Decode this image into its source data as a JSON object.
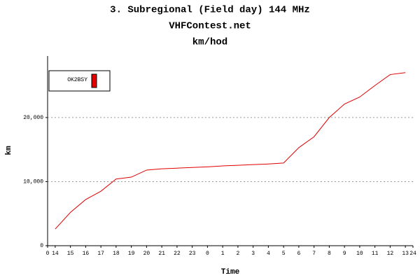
{
  "chart_data": {
    "type": "line",
    "title": "3. Subregional (Field day) 144 MHz",
    "subtitle": "VHFContest.net",
    "unit_title": "km/hod",
    "x_label": "Time",
    "y_label": "km",
    "x": [
      0.5,
      1.5,
      2.5,
      3.5,
      4.5,
      5.5,
      6.5,
      7.5,
      8.5,
      9.5,
      10.5,
      11.5,
      12.5,
      13.5,
      14.5,
      15.5,
      16.5,
      17.5,
      18.5,
      19.5,
      20.5,
      21.5,
      22.5,
      23.5
    ],
    "series": [
      {
        "name": "OK2BSY",
        "color": "#e00000",
        "values": [
          2600,
          5200,
          7200,
          8500,
          10400,
          10700,
          11800,
          12000,
          12100,
          12200,
          12300,
          12450,
          12550,
          12650,
          12750,
          12900,
          15300,
          17000,
          20000,
          22100,
          23200,
          25000,
          26700,
          27000
        ]
      }
    ],
    "xlim": [
      0,
      24
    ],
    "xticks": [
      0,
      {
        "value": 0.5,
        "label": "14"
      },
      {
        "value": 1.5,
        "label": "15"
      },
      {
        "value": 2.5,
        "label": "16"
      },
      {
        "value": 3.5,
        "label": "17"
      },
      {
        "value": 4.5,
        "label": "18"
      },
      {
        "value": 5.5,
        "label": "19"
      },
      {
        "value": 6.5,
        "label": "20"
      },
      {
        "value": 7.5,
        "label": "21"
      },
      {
        "value": 8.5,
        "label": "22"
      },
      {
        "value": 9.5,
        "label": "23"
      },
      {
        "value": 10.5,
        "label": "0"
      },
      {
        "value": 11.5,
        "label": "1"
      },
      {
        "value": 12.5,
        "label": "2"
      },
      {
        "value": 13.5,
        "label": "3"
      },
      {
        "value": 14.5,
        "label": "4"
      },
      {
        "value": 15.5,
        "label": "5"
      },
      {
        "value": 16.5,
        "label": "6"
      },
      {
        "value": 17.5,
        "label": "7"
      },
      {
        "value": 18.5,
        "label": "8"
      },
      {
        "value": 19.5,
        "label": "9"
      },
      {
        "value": 20.5,
        "label": "10"
      },
      {
        "value": 21.5,
        "label": "11"
      },
      {
        "value": 22.5,
        "label": "12"
      },
      {
        "value": 23.5,
        "label": "13"
      },
      24
    ],
    "ylim": [
      0,
      29600
    ],
    "yticks": [
      0,
      {
        "value": 10000,
        "label": "10,000"
      },
      {
        "value": 20000,
        "label": "20,000"
      }
    ],
    "grid": true,
    "legend": "top-left"
  }
}
